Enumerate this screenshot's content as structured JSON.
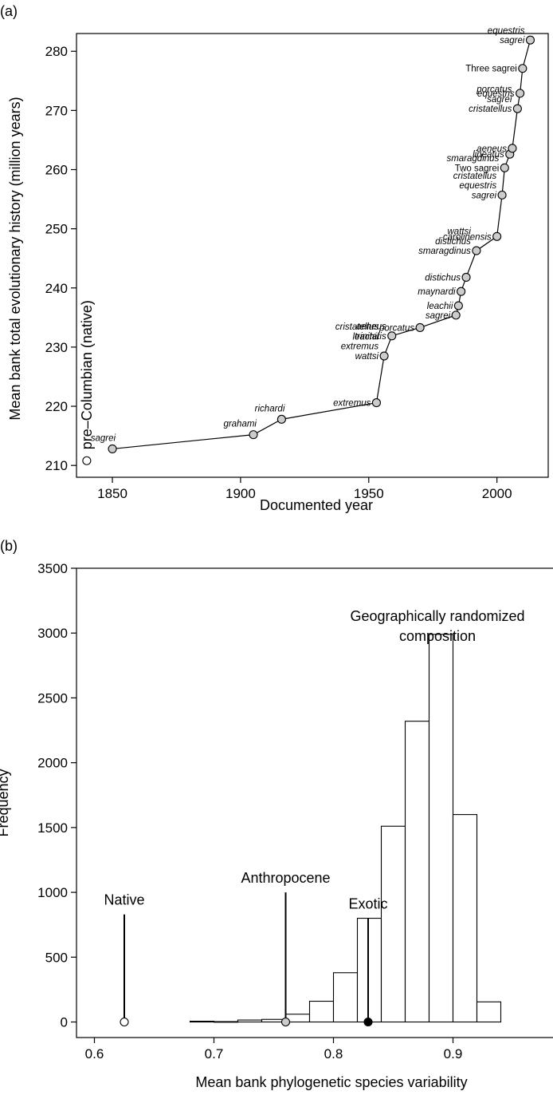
{
  "chart_data": [
    {
      "panel_label": "(a)",
      "type": "line",
      "xlabel": "Documented year",
      "ylabel": "Mean bank total evolutionary history (million years)",
      "xlim": [
        1836,
        2020
      ],
      "ylim": [
        208,
        283
      ],
      "xticks": [
        "1850",
        "1900",
        "1950",
        "2000"
      ],
      "yticks": [
        "210",
        "220",
        "230",
        "240",
        "250",
        "260",
        "270",
        "280"
      ],
      "native_point": {
        "x": 1840,
        "y": 210.8,
        "label": "pre–Columbian (native)"
      },
      "points": [
        {
          "x": 1850,
          "y": 212.8,
          "label": [
            "sagrei"
          ]
        },
        {
          "x": 1905,
          "y": 215.2,
          "label": [
            "grahami"
          ]
        },
        {
          "x": 1916,
          "y": 217.8,
          "label": [
            "richardi"
          ]
        },
        {
          "x": 1953,
          "y": 220.6,
          "label": [
            "extremus"
          ]
        },
        {
          "x": 1956,
          "y": 228.5,
          "label": [
            "cristatellus",
            "leachii",
            "extremus",
            "wattsi"
          ]
        },
        {
          "x": 1959,
          "y": 231.9,
          "label": [
            "aeneus",
            "trinitatis"
          ]
        },
        {
          "x": 1970,
          "y": 233.3,
          "label": [
            "porcatus"
          ]
        },
        {
          "x": 1984,
          "y": 235.4,
          "label": [
            "sagrei"
          ]
        },
        {
          "x": 1985,
          "y": 237.0,
          "label": [
            "leachii"
          ]
        },
        {
          "x": 1986,
          "y": 239.4,
          "label": [
            "maynardi"
          ]
        },
        {
          "x": 1988,
          "y": 241.8,
          "label": [
            "distichus"
          ]
        },
        {
          "x": 1992,
          "y": 246.3,
          "label": [
            "wattsi",
            "distichus",
            "smaragdinus"
          ]
        },
        {
          "x": 2000,
          "y": 248.7,
          "label": [
            "carolinensis"
          ]
        },
        {
          "x": 2002,
          "y": 255.7,
          "label": [
            "cristatellus",
            "equestris",
            "sagrei"
          ]
        },
        {
          "x": 2003,
          "y": 260.3,
          "label": [
            "smaragdinus",
            "Two sagrei"
          ]
        },
        {
          "x": 2005,
          "y": 262.6,
          "label": [
            "lineatus"
          ]
        },
        {
          "x": 2006,
          "y": 263.6,
          "label": [
            "aeneus"
          ]
        },
        {
          "x": 2008,
          "y": 270.3,
          "label": [
            "porcatus",
            "sagrei",
            "cristatellus"
          ]
        },
        {
          "x": 2009,
          "y": 272.9,
          "label": [
            "equestris"
          ]
        },
        {
          "x": 2010,
          "y": 277.1,
          "label": [
            "Three sagrei"
          ]
        },
        {
          "x": 2013,
          "y": 281.9,
          "label": [
            "equestris",
            "sagrei"
          ]
        }
      ]
    },
    {
      "panel_label": "(b)",
      "type": "bar",
      "xlabel": "Mean bank phylogenetic species variability",
      "ylabel": "Frequency",
      "xlim": [
        0.585,
        0.985
      ],
      "ylim": [
        -120,
        3500
      ],
      "xticks": [
        "0.6",
        "0.7",
        "0.8",
        "0.9"
      ],
      "yticks": [
        "0",
        "500",
        "1000",
        "1500",
        "2000",
        "2500",
        "3000",
        "3500"
      ],
      "bin_width": 0.02,
      "bins": [
        {
          "start": 0.68,
          "value": 6
        },
        {
          "start": 0.7,
          "value": 3
        },
        {
          "start": 0.72,
          "value": 15
        },
        {
          "start": 0.74,
          "value": 20
        },
        {
          "start": 0.76,
          "value": 60
        },
        {
          "start": 0.78,
          "value": 160
        },
        {
          "start": 0.8,
          "value": 380
        },
        {
          "start": 0.82,
          "value": 800
        },
        {
          "start": 0.84,
          "value": 1510
        },
        {
          "start": 0.86,
          "value": 2320
        },
        {
          "start": 0.88,
          "value": 2990
        },
        {
          "start": 0.9,
          "value": 1600
        },
        {
          "start": 0.92,
          "value": 155
        }
      ],
      "distribution_label": [
        "Geographically randomized",
        "composition"
      ],
      "markers": [
        {
          "name": "Native",
          "x": 0.625,
          "line_top": 830,
          "color": "#ffffff"
        },
        {
          "name": "Anthropocene",
          "x": 0.76,
          "line_top": 1000,
          "color": "#cccccc"
        },
        {
          "name": "Exotic",
          "x": 0.829,
          "line_top": 800,
          "color": "#000000"
        }
      ]
    }
  ]
}
